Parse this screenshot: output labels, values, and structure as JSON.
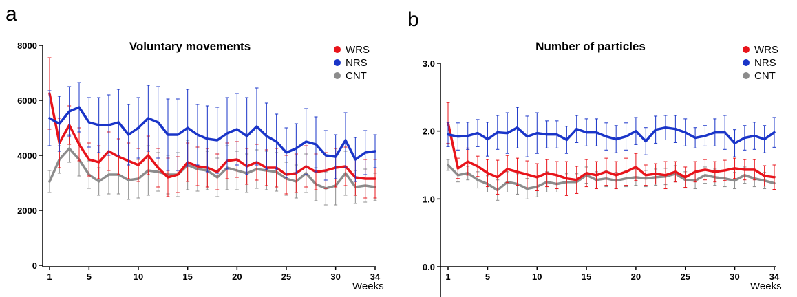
{
  "chart_data": [
    {
      "panel_letter": "a",
      "type": "line",
      "title": "Voluntary movements",
      "xlabel": "Weeks",
      "ylabel": "",
      "xlim": [
        1,
        34
      ],
      "ylim": [
        0,
        8000
      ],
      "xticks": [
        1,
        5,
        10,
        15,
        20,
        25,
        30,
        34
      ],
      "yticks": [
        0,
        2000,
        4000,
        6000,
        8000
      ],
      "ytick_labels": [
        "0",
        "2000",
        "4000",
        "6000",
        "8000"
      ],
      "legend_position": "top-right",
      "error_bars": true,
      "x": [
        1,
        2,
        3,
        4,
        5,
        6,
        7,
        8,
        9,
        10,
        11,
        12,
        13,
        14,
        15,
        16,
        17,
        18,
        19,
        20,
        21,
        22,
        23,
        24,
        25,
        26,
        27,
        28,
        29,
        30,
        31,
        32,
        33,
        34
      ],
      "series": [
        {
          "name": "WRS",
          "color": "#e8141b",
          "values": [
            6250,
            4450,
            5100,
            4400,
            3850,
            3750,
            4150,
            3950,
            3800,
            3650,
            4000,
            3550,
            3200,
            3300,
            3750,
            3600,
            3550,
            3400,
            3800,
            3850,
            3600,
            3750,
            3550,
            3550,
            3300,
            3350,
            3600,
            3400,
            3450,
            3550,
            3600,
            3200,
            3150,
            3150
          ],
          "errors": [
            1300,
            900,
            700,
            600,
            600,
            600,
            700,
            650,
            650,
            600,
            700,
            700,
            700,
            650,
            700,
            700,
            700,
            650,
            650,
            650,
            650,
            650,
            650,
            700,
            700,
            700,
            750,
            650,
            650,
            700,
            700,
            650,
            700,
            700
          ]
        },
        {
          "name": "NRS",
          "color": "#1a35c8",
          "values": [
            5350,
            5150,
            5600,
            5750,
            5200,
            5100,
            5100,
            5200,
            4750,
            5000,
            5350,
            5200,
            4750,
            4750,
            5000,
            4750,
            4600,
            4550,
            4800,
            4950,
            4700,
            5050,
            4700,
            4500,
            4100,
            4250,
            4500,
            4400,
            4000,
            3950,
            4550,
            3850,
            4100,
            4150
          ],
          "errors": [
            1000,
            1000,
            900,
            900,
            900,
            1000,
            1100,
            1200,
            1100,
            1100,
            1200,
            1300,
            1300,
            1300,
            1400,
            1100,
            1200,
            1200,
            1300,
            1300,
            1400,
            1400,
            1200,
            1000,
            900,
            900,
            1200,
            1000,
            900,
            800,
            1000,
            800,
            800,
            600
          ]
        },
        {
          "name": "CNT",
          "color": "#8c8c8c",
          "values": [
            3050,
            3850,
            4250,
            3850,
            3300,
            3050,
            3300,
            3300,
            3100,
            3150,
            3450,
            3400,
            3300,
            3300,
            3650,
            3500,
            3450,
            3200,
            3550,
            3450,
            3350,
            3500,
            3450,
            3400,
            3150,
            3050,
            3350,
            2950,
            2800,
            2900,
            3350,
            2850,
            2900,
            2850
          ],
          "errors": [
            400,
            500,
            500,
            600,
            500,
            500,
            700,
            700,
            700,
            700,
            900,
            700,
            700,
            800,
            900,
            800,
            700,
            700,
            800,
            700,
            700,
            700,
            700,
            700,
            600,
            600,
            700,
            600,
            600,
            700,
            800,
            600,
            600,
            500
          ]
        }
      ]
    },
    {
      "panel_letter": "b",
      "type": "line",
      "title": "Number of particles",
      "xlabel": "Weeks",
      "ylabel": "",
      "xlim": [
        1,
        34
      ],
      "ylim": [
        0,
        3
      ],
      "xticks": [
        1,
        5,
        10,
        15,
        20,
        25,
        30,
        34
      ],
      "yticks": [
        0,
        1,
        2,
        3
      ],
      "ytick_labels": [
        "0.0",
        "1.0",
        "2.0",
        "3.0"
      ],
      "legend_position": "top-right",
      "error_bars": true,
      "x": [
        1,
        2,
        3,
        4,
        5,
        6,
        7,
        8,
        9,
        10,
        11,
        12,
        13,
        14,
        15,
        16,
        17,
        18,
        19,
        20,
        21,
        22,
        23,
        24,
        25,
        26,
        27,
        28,
        29,
        30,
        31,
        32,
        33,
        34
      ],
      "series": [
        {
          "name": "WRS",
          "color": "#e8141b",
          "values": [
            2.12,
            1.45,
            1.55,
            1.48,
            1.38,
            1.32,
            1.44,
            1.4,
            1.36,
            1.32,
            1.38,
            1.35,
            1.3,
            1.28,
            1.38,
            1.35,
            1.4,
            1.35,
            1.4,
            1.47,
            1.35,
            1.37,
            1.35,
            1.4,
            1.32,
            1.4,
            1.43,
            1.4,
            1.42,
            1.45,
            1.43,
            1.43,
            1.34,
            1.32
          ],
          "errors": [
            0.3,
            0.15,
            0.2,
            0.15,
            0.2,
            0.25,
            0.2,
            0.2,
            0.2,
            0.2,
            0.2,
            0.2,
            0.25,
            0.2,
            0.2,
            0.2,
            0.2,
            0.2,
            0.2,
            0.2,
            0.15,
            0.15,
            0.2,
            0.15,
            0.15,
            0.15,
            0.15,
            0.15,
            0.15,
            0.15,
            0.15,
            0.15,
            0.15,
            0.18
          ]
        },
        {
          "name": "NRS",
          "color": "#1a35c8",
          "values": [
            1.95,
            1.92,
            1.93,
            1.97,
            1.88,
            1.98,
            1.97,
            2.05,
            1.92,
            1.97,
            1.95,
            1.95,
            1.87,
            2.03,
            1.98,
            1.98,
            1.92,
            1.88,
            1.92,
            2.0,
            1.85,
            2.02,
            2.05,
            2.03,
            1.98,
            1.9,
            1.93,
            1.98,
            1.98,
            1.82,
            1.9,
            1.93,
            1.88,
            1.98
          ],
          "errors": [
            0.18,
            0.2,
            0.2,
            0.2,
            0.25,
            0.25,
            0.3,
            0.3,
            0.3,
            0.3,
            0.2,
            0.2,
            0.2,
            0.2,
            0.2,
            0.2,
            0.2,
            0.2,
            0.2,
            0.2,
            0.2,
            0.2,
            0.18,
            0.2,
            0.2,
            0.15,
            0.15,
            0.2,
            0.25,
            0.2,
            0.18,
            0.2,
            0.2,
            0.22
          ]
        },
        {
          "name": "CNT",
          "color": "#8c8c8c",
          "values": [
            1.5,
            1.35,
            1.38,
            1.28,
            1.22,
            1.13,
            1.25,
            1.22,
            1.15,
            1.18,
            1.25,
            1.22,
            1.25,
            1.25,
            1.35,
            1.28,
            1.3,
            1.27,
            1.3,
            1.32,
            1.3,
            1.32,
            1.33,
            1.37,
            1.28,
            1.27,
            1.35,
            1.32,
            1.3,
            1.27,
            1.35,
            1.3,
            1.27,
            1.23
          ],
          "errors": [
            0.08,
            0.1,
            0.1,
            0.12,
            0.12,
            0.15,
            0.15,
            0.15,
            0.15,
            0.15,
            0.15,
            0.12,
            0.12,
            0.12,
            0.12,
            0.12,
            0.12,
            0.12,
            0.12,
            0.12,
            0.12,
            0.12,
            0.12,
            0.12,
            0.12,
            0.12,
            0.12,
            0.12,
            0.12,
            0.12,
            0.12,
            0.12,
            0.12,
            0.1
          ]
        }
      ]
    }
  ]
}
